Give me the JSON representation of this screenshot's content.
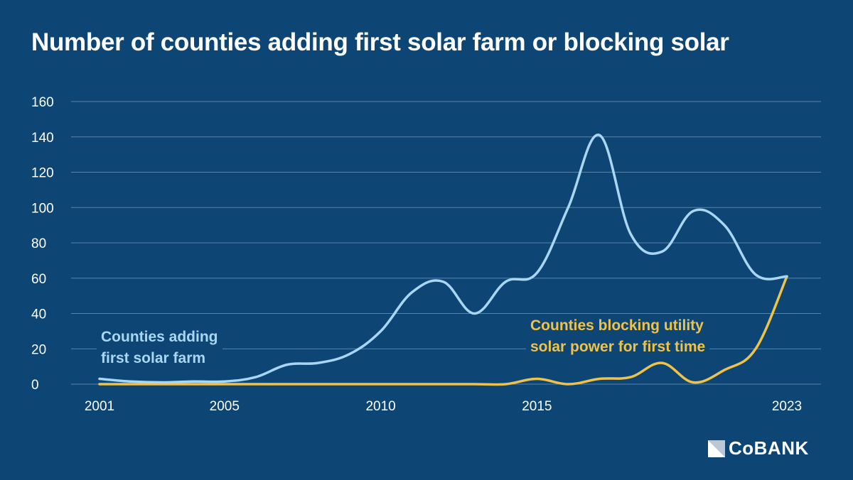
{
  "title": "Number of counties adding first solar farm or blocking solar",
  "logo_text": "CoBANK",
  "chart_data": {
    "type": "line",
    "title": "Number of counties adding first solar farm or blocking solar",
    "x": [
      2001,
      2002,
      2003,
      2004,
      2005,
      2006,
      2007,
      2008,
      2009,
      2010,
      2011,
      2012,
      2013,
      2014,
      2015,
      2016,
      2017,
      2018,
      2019,
      2020,
      2021,
      2022,
      2023
    ],
    "x_tick_labels": [
      "2001",
      "2005",
      "2010",
      "2015",
      "2023"
    ],
    "x_tick_values": [
      2001,
      2005,
      2010,
      2015,
      2023
    ],
    "y_ticks": [
      0,
      20,
      40,
      60,
      80,
      100,
      120,
      140,
      160
    ],
    "ylim": [
      0,
      160
    ],
    "grid": "horizontal",
    "series": [
      {
        "name": "Counties adding first solar farm",
        "color": "#a9d6f3",
        "values": [
          3,
          1.5,
          1,
          1.5,
          1.5,
          4,
          11,
          12,
          17,
          30,
          52,
          58,
          40,
          58,
          63,
          100,
          141,
          85,
          75,
          98,
          90,
          62,
          61
        ]
      },
      {
        "name": "Counties blocking utility solar power for first time",
        "color": "#efc24a",
        "values": [
          0,
          0,
          0,
          0,
          0,
          0,
          0,
          0,
          0,
          0,
          0,
          0,
          0,
          0,
          3,
          0,
          3,
          4,
          12,
          1,
          8,
          20,
          61
        ]
      }
    ],
    "annotations": [
      {
        "lines": [
          "Counties adding",
          "first solar farm"
        ],
        "series": 0
      },
      {
        "lines": [
          "Counties blocking utility",
          "solar power for first time"
        ],
        "series": 1
      }
    ]
  }
}
